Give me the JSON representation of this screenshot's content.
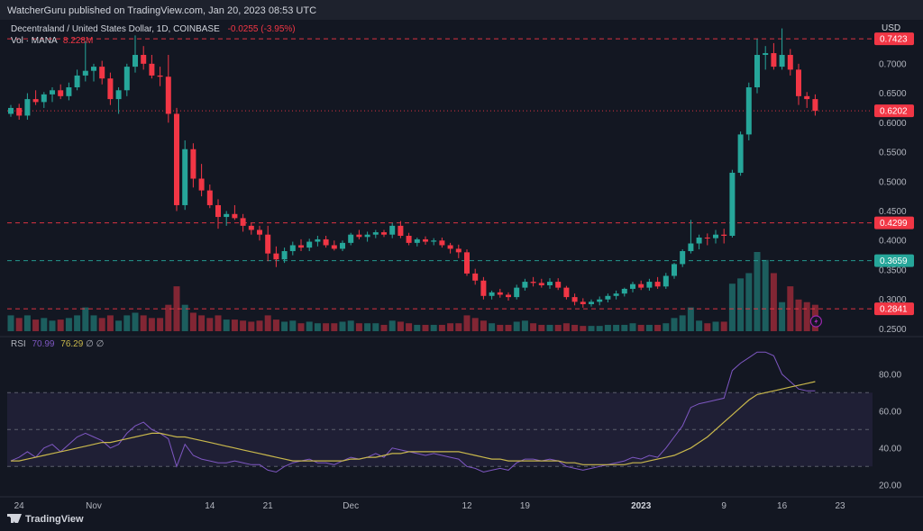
{
  "publisher": "WatcherGuru published on TradingView.com, Jan 20, 2023 08:53 UTC",
  "symbol": {
    "name": "Decentraland / United States Dollar, 1D, COINBASE",
    "change": "-0.0255 (-3.95%)"
  },
  "volume": {
    "label": "Vol · MANA",
    "value": "8.228M"
  },
  "currency": "USD",
  "rsi": {
    "label": "RSI",
    "value1": "70.99",
    "value2": "76.29",
    "extras": "∅ ∅"
  },
  "footer": {
    "brand": "TradingView"
  },
  "colors": {
    "up": "#26a69a",
    "down": "#f23645",
    "rsi": "#7e57c2",
    "rsi_ma": "#c9b84c",
    "background": "#131722"
  },
  "chart_data": [
    {
      "type": "candlestick",
      "title": "Decentraland / United States Dollar, 1D, COINBASE",
      "ylim": [
        0.24,
        0.77
      ],
      "y_ticks": [
        "0.7000",
        "0.6500",
        "0.6000",
        "0.5500",
        "0.5000",
        "0.4500",
        "0.4000",
        "0.3500",
        "0.3000",
        "0.2500"
      ],
      "x_ticks": [
        "24",
        "Nov",
        "14",
        "21",
        "Dec",
        "12",
        "19",
        "2023",
        "9",
        "16",
        "23"
      ],
      "price_labels": [
        {
          "text": "0.7423",
          "value": 0.7423,
          "style": "dashed-red"
        },
        {
          "text": "0.6202",
          "value": 0.6202,
          "style": "dotted-red"
        },
        {
          "text": "0.4299",
          "value": 0.4299,
          "style": "dashed-red"
        },
        {
          "text": "0.3659",
          "value": 0.3659,
          "style": "dashed-green"
        },
        {
          "text": "0.2841",
          "value": 0.2841,
          "style": "dashed-red"
        }
      ],
      "ohlc": [
        [
          0.615,
          0.63,
          0.61,
          0.625
        ],
        [
          0.625,
          0.632,
          0.605,
          0.612
        ],
        [
          0.612,
          0.65,
          0.605,
          0.64
        ],
        [
          0.64,
          0.655,
          0.63,
          0.635
        ],
        [
          0.635,
          0.652,
          0.625,
          0.648
        ],
        [
          0.648,
          0.66,
          0.635,
          0.655
        ],
        [
          0.655,
          0.665,
          0.64,
          0.645
        ],
        [
          0.645,
          0.668,
          0.638,
          0.66
        ],
        [
          0.66,
          0.69,
          0.655,
          0.68
        ],
        [
          0.68,
          0.738,
          0.67,
          0.688
        ],
        [
          0.688,
          0.7,
          0.67,
          0.695
        ],
        [
          0.695,
          0.705,
          0.665,
          0.675
        ],
        [
          0.675,
          0.685,
          0.63,
          0.64
        ],
        [
          0.64,
          0.66,
          0.615,
          0.655
        ],
        [
          0.655,
          0.7,
          0.645,
          0.695
        ],
        [
          0.695,
          0.748,
          0.685,
          0.715
        ],
        [
          0.715,
          0.73,
          0.69,
          0.7
        ],
        [
          0.7,
          0.715,
          0.675,
          0.68
        ],
        [
          0.68,
          0.695,
          0.662,
          0.678
        ],
        [
          0.678,
          0.715,
          0.6,
          0.615
        ],
        [
          0.615,
          0.625,
          0.45,
          0.46
        ],
        [
          0.46,
          0.57,
          0.452,
          0.555
        ],
        [
          0.555,
          0.565,
          0.49,
          0.505
        ],
        [
          0.505,
          0.53,
          0.475,
          0.485
        ],
        [
          0.485,
          0.495,
          0.455,
          0.46
        ],
        [
          0.46,
          0.47,
          0.42,
          0.44
        ],
        [
          0.44,
          0.45,
          0.425,
          0.445
        ],
        [
          0.445,
          0.46,
          0.435,
          0.438
        ],
        [
          0.438,
          0.445,
          0.415,
          0.425
        ],
        [
          0.425,
          0.43,
          0.41,
          0.418
        ],
        [
          0.418,
          0.425,
          0.4,
          0.41
        ],
        [
          0.41,
          0.425,
          0.365,
          0.378
        ],
        [
          0.378,
          0.39,
          0.355,
          0.368
        ],
        [
          0.368,
          0.388,
          0.362,
          0.382
        ],
        [
          0.382,
          0.398,
          0.375,
          0.392
        ],
        [
          0.392,
          0.402,
          0.382,
          0.388
        ],
        [
          0.388,
          0.403,
          0.382,
          0.398
        ],
        [
          0.398,
          0.408,
          0.39,
          0.402
        ],
        [
          0.402,
          0.408,
          0.388,
          0.392
        ],
        [
          0.392,
          0.4,
          0.383,
          0.386
        ],
        [
          0.386,
          0.4,
          0.382,
          0.396
        ],
        [
          0.396,
          0.413,
          0.392,
          0.41
        ],
        [
          0.41,
          0.418,
          0.402,
          0.406
        ],
        [
          0.406,
          0.415,
          0.398,
          0.41
        ],
        [
          0.41,
          0.418,
          0.404,
          0.414
        ],
        [
          0.414,
          0.418,
          0.406,
          0.41
        ],
        [
          0.41,
          0.43,
          0.404,
          0.425
        ],
        [
          0.425,
          0.433,
          0.404,
          0.408
        ],
        [
          0.408,
          0.413,
          0.392,
          0.396
        ],
        [
          0.396,
          0.405,
          0.39,
          0.402
        ],
        [
          0.402,
          0.407,
          0.393,
          0.398
        ],
        [
          0.398,
          0.404,
          0.392,
          0.4
        ],
        [
          0.4,
          0.405,
          0.388,
          0.392
        ],
        [
          0.392,
          0.396,
          0.378,
          0.386
        ],
        [
          0.386,
          0.393,
          0.37,
          0.38
        ],
        [
          0.38,
          0.385,
          0.34,
          0.344
        ],
        [
          0.344,
          0.352,
          0.325,
          0.332
        ],
        [
          0.332,
          0.338,
          0.3,
          0.306
        ],
        [
          0.306,
          0.315,
          0.3,
          0.312
        ],
        [
          0.312,
          0.318,
          0.303,
          0.308
        ],
        [
          0.308,
          0.312,
          0.298,
          0.304
        ],
        [
          0.304,
          0.325,
          0.3,
          0.32
        ],
        [
          0.32,
          0.335,
          0.315,
          0.33
        ],
        [
          0.33,
          0.338,
          0.322,
          0.328
        ],
        [
          0.328,
          0.335,
          0.32,
          0.324
        ],
        [
          0.324,
          0.336,
          0.318,
          0.33
        ],
        [
          0.33,
          0.336,
          0.316,
          0.32
        ],
        [
          0.32,
          0.323,
          0.3,
          0.304
        ],
        [
          0.304,
          0.31,
          0.29,
          0.296
        ],
        [
          0.296,
          0.302,
          0.286,
          0.292
        ],
        [
          0.292,
          0.3,
          0.288,
          0.296
        ],
        [
          0.296,
          0.305,
          0.29,
          0.3
        ],
        [
          0.3,
          0.31,
          0.295,
          0.306
        ],
        [
          0.306,
          0.315,
          0.3,
          0.31
        ],
        [
          0.31,
          0.32,
          0.305,
          0.318
        ],
        [
          0.318,
          0.33,
          0.312,
          0.326
        ],
        [
          0.326,
          0.332,
          0.316,
          0.32
        ],
        [
          0.32,
          0.335,
          0.315,
          0.33
        ],
        [
          0.33,
          0.338,
          0.318,
          0.322
        ],
        [
          0.322,
          0.345,
          0.318,
          0.34
        ],
        [
          0.34,
          0.362,
          0.335,
          0.36
        ],
        [
          0.36,
          0.385,
          0.355,
          0.382
        ],
        [
          0.382,
          0.435,
          0.378,
          0.395
        ],
        [
          0.395,
          0.41,
          0.385,
          0.405
        ],
        [
          0.405,
          0.412,
          0.392,
          0.404
        ],
        [
          0.404,
          0.418,
          0.395,
          0.41
        ],
        [
          0.41,
          0.42,
          0.395,
          0.408
        ],
        [
          0.408,
          0.52,
          0.405,
          0.515
        ],
        [
          0.515,
          0.585,
          0.51,
          0.58
        ],
        [
          0.58,
          0.668,
          0.57,
          0.66
        ],
        [
          0.66,
          0.742,
          0.65,
          0.715
        ],
        [
          0.715,
          0.73,
          0.69,
          0.718
        ],
        [
          0.718,
          0.735,
          0.69,
          0.695
        ],
        [
          0.695,
          0.76,
          0.69,
          0.715
        ],
        [
          0.715,
          0.725,
          0.68,
          0.69
        ],
        [
          0.69,
          0.7,
          0.63,
          0.645
        ],
        [
          0.645,
          0.652,
          0.625,
          0.64
        ],
        [
          0.64,
          0.648,
          0.612,
          0.62
        ]
      ]
    },
    {
      "type": "bar",
      "title": "Vol · MANA",
      "values": [
        0.3,
        0.25,
        0.3,
        0.22,
        0.25,
        0.2,
        0.22,
        0.25,
        0.3,
        0.45,
        0.3,
        0.25,
        0.3,
        0.2,
        0.3,
        0.35,
        0.3,
        0.25,
        0.25,
        0.5,
        0.85,
        0.5,
        0.35,
        0.3,
        0.25,
        0.3,
        0.22,
        0.22,
        0.2,
        0.18,
        0.2,
        0.3,
        0.22,
        0.18,
        0.2,
        0.15,
        0.18,
        0.15,
        0.15,
        0.15,
        0.18,
        0.2,
        0.15,
        0.15,
        0.15,
        0.12,
        0.2,
        0.18,
        0.15,
        0.12,
        0.12,
        0.12,
        0.12,
        0.15,
        0.15,
        0.3,
        0.25,
        0.2,
        0.15,
        0.12,
        0.12,
        0.18,
        0.2,
        0.15,
        0.12,
        0.12,
        0.12,
        0.15,
        0.12,
        0.1,
        0.1,
        0.1,
        0.12,
        0.12,
        0.12,
        0.15,
        0.12,
        0.12,
        0.12,
        0.15,
        0.25,
        0.3,
        0.45,
        0.2,
        0.15,
        0.18,
        0.18,
        0.9,
        1.0,
        1.1,
        1.5,
        1.35,
        1.1,
        0.55,
        0.85,
        0.6,
        0.55,
        0.5
      ]
    },
    {
      "type": "line",
      "title": "RSI",
      "ylim": [
        16,
        96
      ],
      "y_ticks": [
        "80.00",
        "60.00",
        "40.00",
        "20.00"
      ],
      "bands": [
        70,
        50,
        30
      ],
      "series": [
        {
          "name": "RSI",
          "values": [
            33,
            35,
            38,
            35,
            40,
            42,
            38,
            42,
            46,
            48,
            46,
            44,
            40,
            42,
            48,
            52,
            54,
            50,
            48,
            45,
            30,
            42,
            36,
            34,
            33,
            32,
            32,
            33,
            32,
            31,
            31,
            28,
            27,
            30,
            32,
            33,
            34,
            32,
            32,
            31,
            33,
            35,
            34,
            35,
            37,
            35,
            40,
            39,
            38,
            37,
            36,
            37,
            36,
            35,
            34,
            30,
            29,
            27,
            28,
            29,
            28,
            32,
            34,
            34,
            33,
            34,
            33,
            30,
            29,
            28,
            29,
            30,
            31,
            32,
            33,
            35,
            34,
            36,
            35,
            40,
            46,
            52,
            62,
            64,
            65,
            66,
            67,
            82,
            86,
            89,
            92,
            92,
            90,
            80,
            76,
            72,
            71,
            71
          ]
        },
        {
          "name": "",
          "values": [
            33,
            33,
            34,
            35,
            36,
            37,
            38,
            39,
            40,
            41,
            42,
            43,
            43,
            44,
            45,
            46,
            47,
            48,
            48,
            47,
            46,
            46,
            45,
            44,
            43,
            42,
            41,
            40,
            39,
            38,
            37,
            36,
            35,
            34,
            33,
            33,
            33,
            33,
            33,
            33,
            33,
            34,
            34,
            35,
            35,
            36,
            37,
            37,
            38,
            38,
            38,
            38,
            38,
            38,
            38,
            37,
            36,
            35,
            34,
            34,
            33,
            33,
            33,
            33,
            33,
            33,
            33,
            32,
            32,
            31,
            31,
            31,
            31,
            31,
            31,
            32,
            32,
            33,
            34,
            35,
            36,
            38,
            40,
            43,
            46,
            50,
            54,
            58,
            62,
            66,
            69,
            70,
            71,
            72,
            73,
            74,
            75,
            76
          ]
        }
      ]
    }
  ]
}
